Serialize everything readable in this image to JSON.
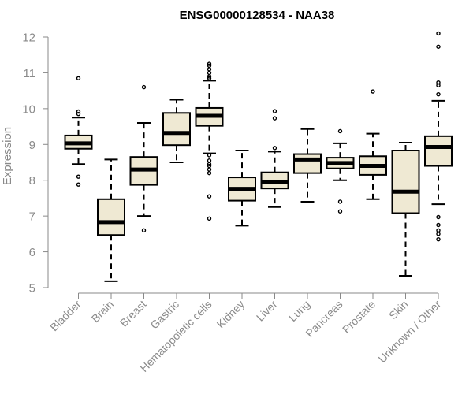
{
  "chart_data": {
    "type": "boxplot",
    "title": "ENSG00000128534 - NAA38",
    "xlabel": "",
    "ylabel": "Expression",
    "ylim": [
      5,
      12
    ],
    "yticks": [
      5,
      6,
      7,
      8,
      9,
      10,
      11,
      12
    ],
    "grid": false,
    "box_fill": "#efe9d3",
    "categories": [
      "Bladder",
      "Brain",
      "Breast",
      "Gastric",
      "Hematopoietic cells",
      "Kidney",
      "Liver",
      "Lung",
      "Pancreas",
      "Prostate",
      "Skin",
      "Unknown / Other"
    ],
    "boxes": [
      {
        "name": "Bladder",
        "whisker_low": 8.45,
        "q1": 8.88,
        "median": 9.03,
        "q3": 9.25,
        "whisker_high": 9.75,
        "outliers": [
          10.85,
          9.92,
          9.85,
          8.1,
          7.88
        ]
      },
      {
        "name": "Brain",
        "whisker_low": 5.18,
        "q1": 6.47,
        "median": 6.83,
        "q3": 7.47,
        "whisker_high": 8.58,
        "outliers": []
      },
      {
        "name": "Breast",
        "whisker_low": 7.0,
        "q1": 7.87,
        "median": 8.3,
        "q3": 8.65,
        "whisker_high": 9.6,
        "outliers": [
          10.6,
          6.6
        ]
      },
      {
        "name": "Gastric",
        "whisker_low": 8.5,
        "q1": 8.98,
        "median": 9.32,
        "q3": 9.88,
        "whisker_high": 10.25,
        "outliers": []
      },
      {
        "name": "Hematopoietic cells",
        "whisker_low": 8.75,
        "q1": 9.52,
        "median": 9.8,
        "q3": 10.02,
        "whisker_high": 10.78,
        "outliers": [
          11.25,
          11.2,
          11.1,
          11.0,
          10.9,
          10.85,
          8.7,
          8.55,
          8.45,
          8.4,
          8.3,
          8.2,
          7.55,
          6.93
        ]
      },
      {
        "name": "Kidney",
        "whisker_low": 6.73,
        "q1": 7.43,
        "median": 7.76,
        "q3": 8.08,
        "whisker_high": 8.83,
        "outliers": []
      },
      {
        "name": "Liver",
        "whisker_low": 7.25,
        "q1": 7.77,
        "median": 7.96,
        "q3": 8.22,
        "whisker_high": 8.8,
        "outliers": [
          9.93,
          9.73,
          8.9
        ]
      },
      {
        "name": "Lung",
        "whisker_low": 7.4,
        "q1": 8.2,
        "median": 8.58,
        "q3": 8.73,
        "whisker_high": 9.43,
        "outliers": []
      },
      {
        "name": "Pancreas",
        "whisker_low": 8.0,
        "q1": 8.33,
        "median": 8.48,
        "q3": 8.63,
        "whisker_high": 9.03,
        "outliers": [
          9.37,
          7.4,
          7.13
        ]
      },
      {
        "name": "Prostate",
        "whisker_low": 7.47,
        "q1": 8.15,
        "median": 8.4,
        "q3": 8.67,
        "whisker_high": 9.3,
        "outliers": [
          10.48
        ]
      },
      {
        "name": "Skin",
        "whisker_low": 5.33,
        "q1": 7.08,
        "median": 7.68,
        "q3": 8.83,
        "whisker_high": 9.05,
        "outliers": []
      },
      {
        "name": "Unknown / Other",
        "whisker_low": 7.33,
        "q1": 8.4,
        "median": 8.93,
        "q3": 9.23,
        "whisker_high": 10.22,
        "outliers": [
          12.1,
          11.73,
          10.73,
          10.65,
          10.4,
          6.97,
          6.75,
          6.6,
          6.5,
          6.35
        ]
      }
    ]
  }
}
